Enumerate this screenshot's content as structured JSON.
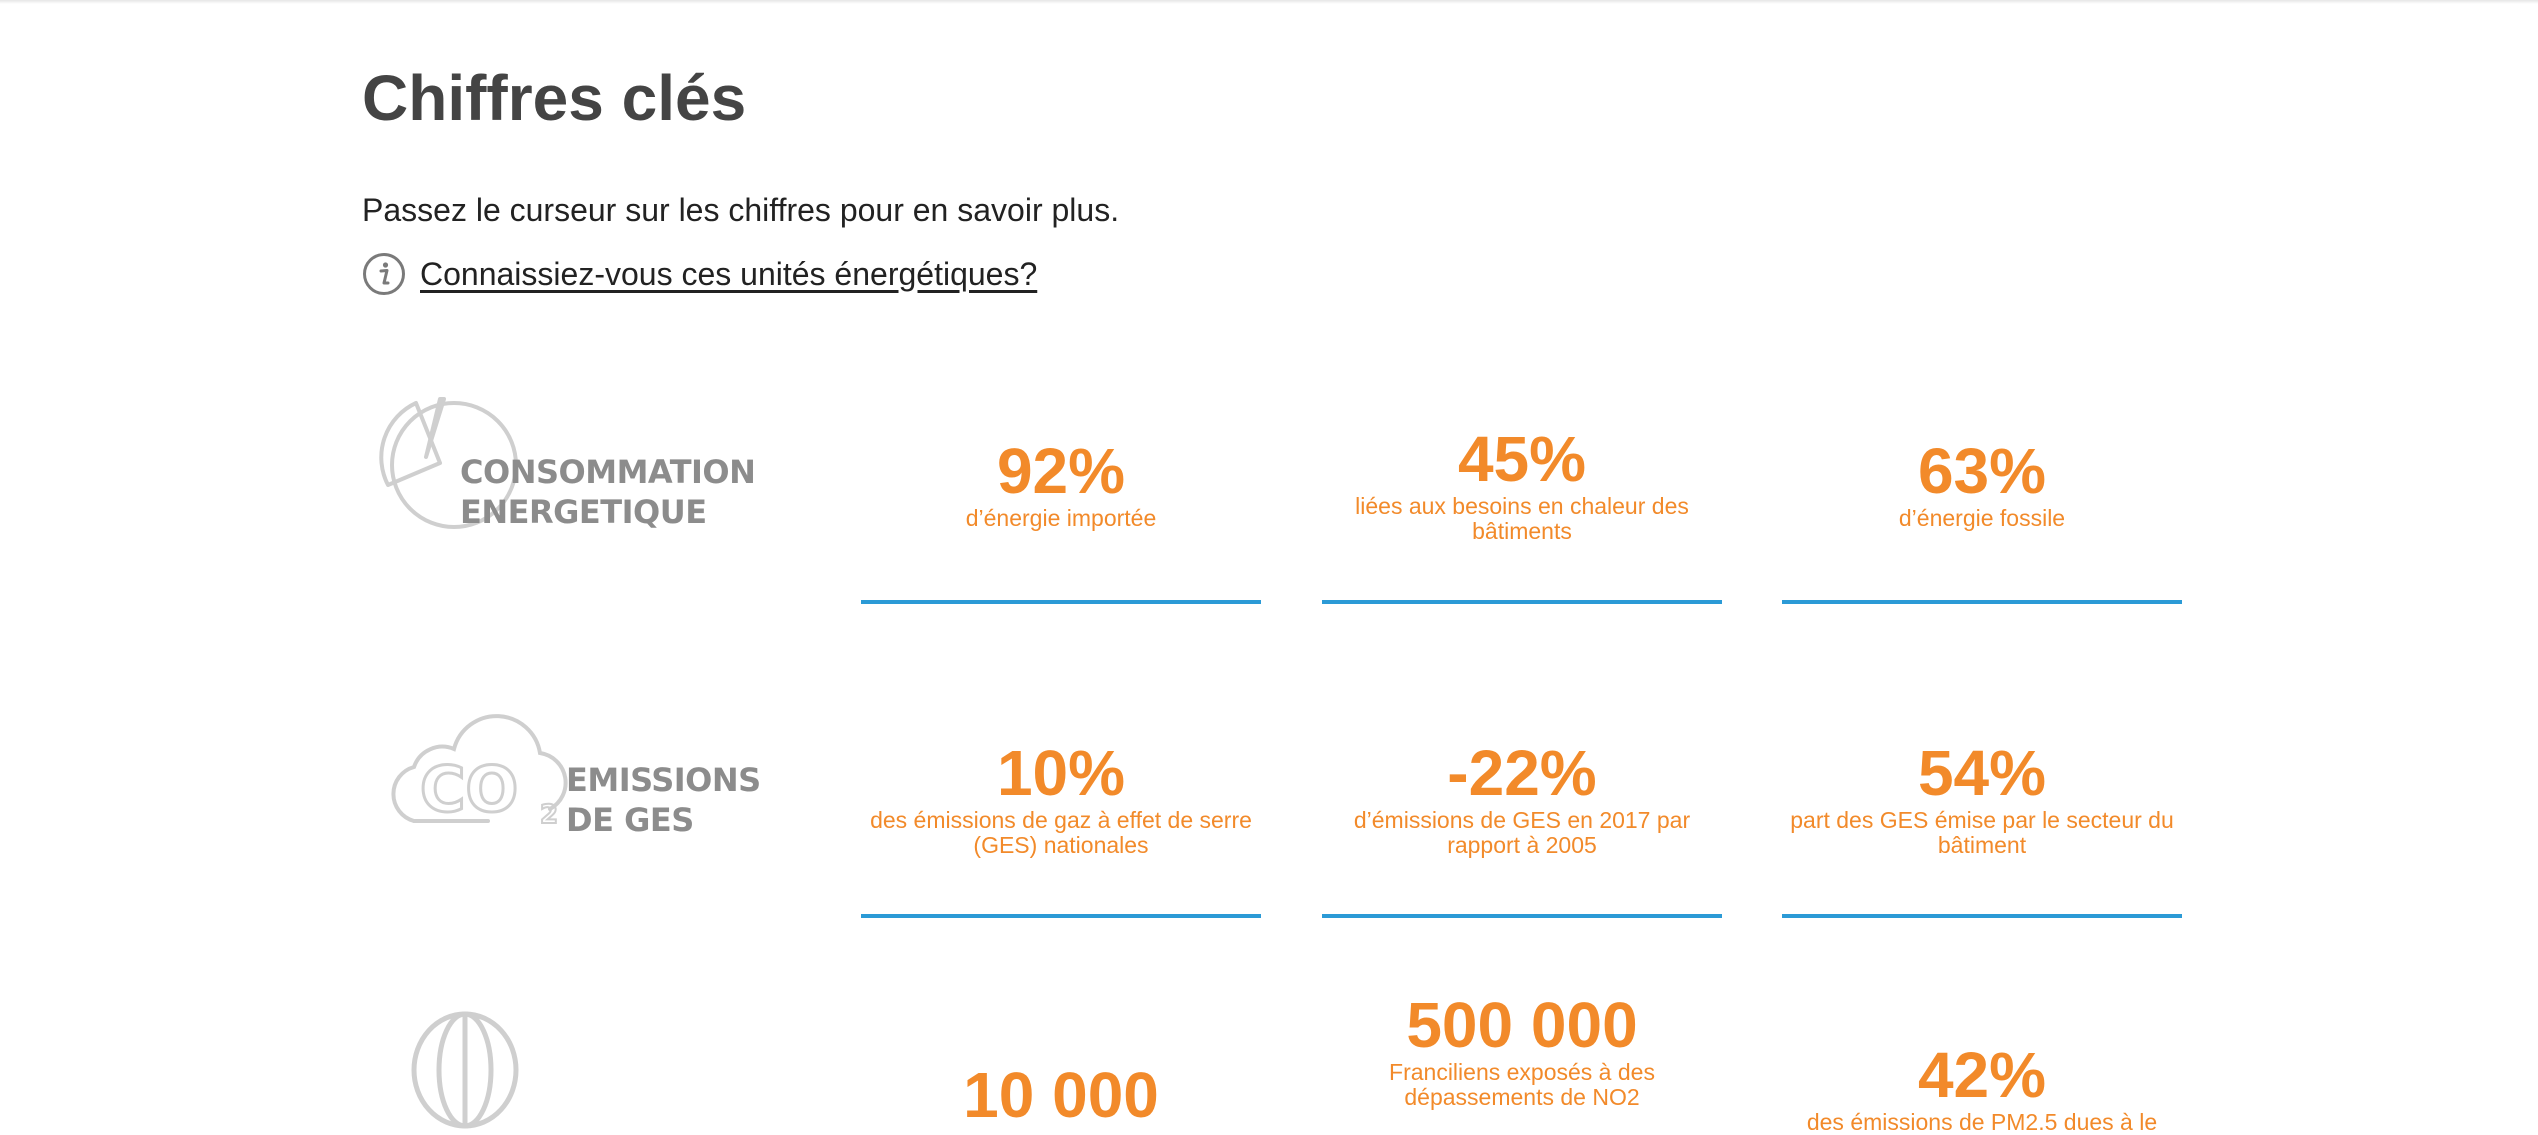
{
  "header": {
    "title": "Chiffres clés",
    "intro": "Passez le curseur sur les chiffres pour en savoir plus.",
    "info_link": "Connaissiez-vous ces unités énergétiques?"
  },
  "icons": {
    "info": "info-circle-icon",
    "consumption": "pie-chart-icon",
    "emissions": "co2-cloud-icon",
    "air": "air-balloon-icon"
  },
  "colors": {
    "accent": "#f28a2a",
    "divider": "#2b9ad6",
    "category_gray": "#8c8c8c",
    "title": "#444444"
  },
  "categories": [
    {
      "line1": "CONSOMMATION",
      "line2": "ENERGETIQUE",
      "stats": [
        {
          "value": "92%",
          "desc": "d’énergie importée"
        },
        {
          "value": "45%",
          "desc": "liées aux besoins en chaleur des bâtiments"
        },
        {
          "value": "63%",
          "desc": "d’énergie fossile"
        }
      ]
    },
    {
      "line1": "EMISSIONS",
      "line2": "DE GES",
      "stats": [
        {
          "value": "10%",
          "desc": "des émissions de gaz à effet de serre (GES) nationales"
        },
        {
          "value": "-22%",
          "desc": "d’émissions de GES en 2017 par rapport à 2005"
        },
        {
          "value": "54%",
          "desc": "part des GES émise par le secteur du bâtiment"
        }
      ]
    },
    {
      "line1": "",
      "line2": "",
      "stats": [
        {
          "value": "10 000",
          "desc": ""
        },
        {
          "value": "500 000",
          "desc": "Franciliens exposés à des dépassements de NO2"
        },
        {
          "value": "42%",
          "desc": "des émissions de PM2.5 dues à le"
        }
      ]
    }
  ]
}
